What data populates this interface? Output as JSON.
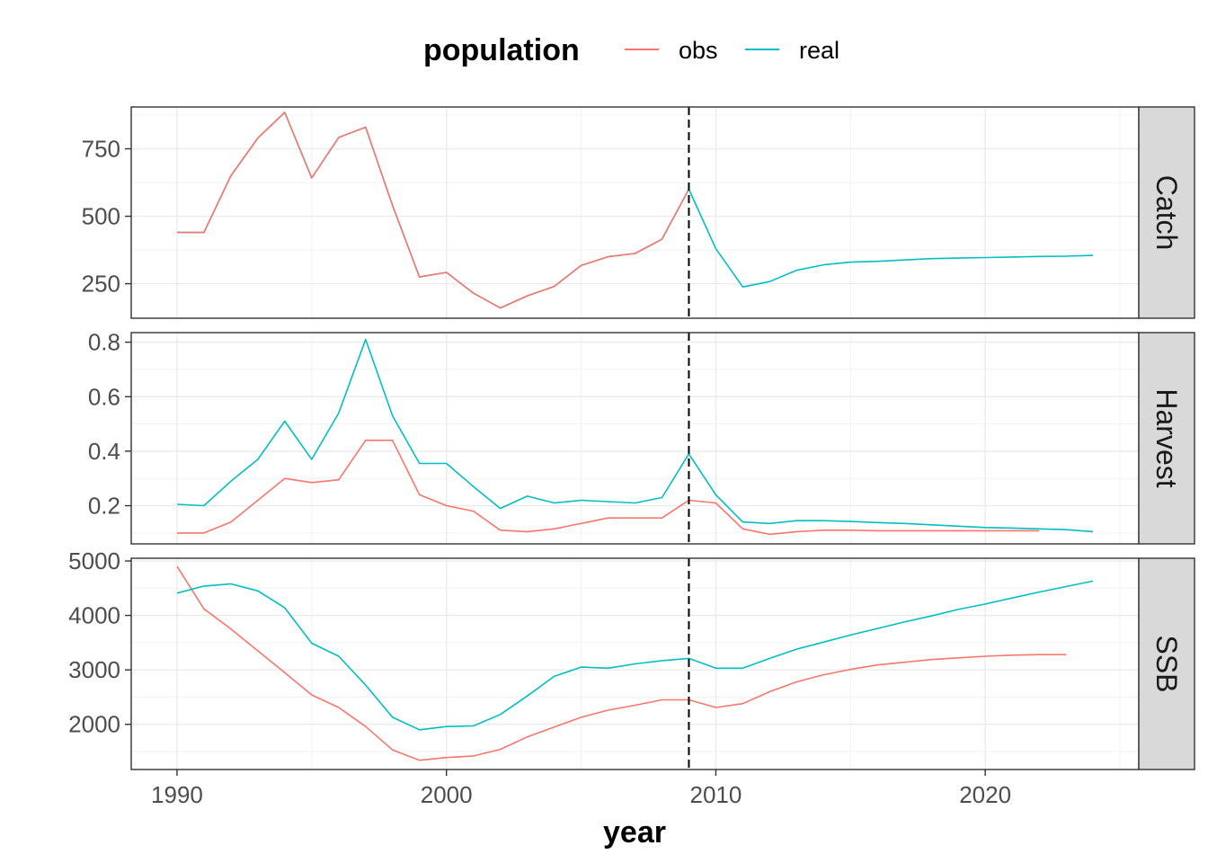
{
  "chart_data": {
    "type": "line",
    "xlabel": "year",
    "xlim": [
      1988.3,
      2025.7
    ],
    "x_ticks": [
      1990,
      2000,
      2010,
      2020
    ],
    "x_tick_labels": [
      "1990",
      "2000",
      "2010",
      "2020"
    ],
    "x_minor_ticks": [
      1995,
      2005,
      2015,
      2025
    ],
    "vline_x": 2009,
    "grid": true,
    "legend": {
      "title": "population",
      "position": "top",
      "entries": [
        {
          "name": "obs",
          "color": "#F8766D"
        },
        {
          "name": "real",
          "color": "#00BFC4"
        }
      ]
    },
    "panels": [
      {
        "strip": "Catch",
        "ylim": [
          122,
          905
        ],
        "y_ticks": [
          250,
          500,
          750
        ],
        "y_tick_labels": [
          "250",
          "500",
          "750"
        ],
        "y_minor_ticks": [
          375,
          625,
          875
        ],
        "series": [
          {
            "name": "real",
            "color": "#00BFC4",
            "x": [
              1990,
              1991,
              1992,
              1993,
              1994,
              1995,
              1996,
              1997,
              1998,
              1999,
              2000,
              2001,
              2002,
              2003,
              2004,
              2005,
              2006,
              2007,
              2008,
              2009,
              2010,
              2011,
              2012,
              2013,
              2014,
              2015,
              2016,
              2017,
              2018,
              2019,
              2020,
              2021,
              2022,
              2023,
              2024
            ],
            "y": [
              440,
              440,
              650,
              790,
              885,
              642,
              792,
              830,
              540,
              275,
              292,
              215,
              160,
              205,
              240,
              318,
              350,
              362,
              415,
              600,
              380,
              238,
              258,
              300,
              320,
              330,
              333,
              338,
              343,
              345,
              347,
              349,
              351,
              352,
              355
            ]
          },
          {
            "name": "obs",
            "color": "#F8766D",
            "x": [
              1990,
              1991,
              1992,
              1993,
              1994,
              1995,
              1996,
              1997,
              1998,
              1999,
              2000,
              2001,
              2002,
              2003,
              2004,
              2005,
              2006,
              2007,
              2008,
              2009
            ],
            "y": [
              440,
              440,
              650,
              790,
              885,
              642,
              792,
              830,
              540,
              275,
              292,
              215,
              160,
              205,
              240,
              318,
              350,
              362,
              415,
              600
            ]
          }
        ]
      },
      {
        "strip": "Harvest",
        "ylim": [
          0.06,
          0.835
        ],
        "y_ticks": [
          0.2,
          0.4,
          0.6,
          0.8
        ],
        "y_tick_labels": [
          "0.2",
          "0.4",
          "0.6",
          "0.8"
        ],
        "y_minor_ticks": [
          0.1,
          0.3,
          0.5,
          0.7
        ],
        "series": [
          {
            "name": "obs",
            "color": "#F8766D",
            "x": [
              1990,
              1991,
              1992,
              1993,
              1994,
              1995,
              1996,
              1997,
              1998,
              1999,
              2000,
              2001,
              2002,
              2003,
              2004,
              2005,
              2006,
              2007,
              2008,
              2009,
              2010,
              2011,
              2012,
              2013,
              2014,
              2015,
              2016,
              2017,
              2018,
              2019,
              2020,
              2021,
              2022
            ],
            "y": [
              0.1,
              0.1,
              0.14,
              0.22,
              0.3,
              0.285,
              0.295,
              0.44,
              0.44,
              0.24,
              0.2,
              0.18,
              0.11,
              0.105,
              0.115,
              0.135,
              0.155,
              0.155,
              0.155,
              0.22,
              0.21,
              0.115,
              0.095,
              0.105,
              0.11,
              0.11,
              0.108,
              0.108,
              0.108,
              0.108,
              0.108,
              0.108,
              0.108
            ]
          },
          {
            "name": "real",
            "color": "#00BFC4",
            "x": [
              1990,
              1991,
              1992,
              1993,
              1994,
              1995,
              1996,
              1997,
              1998,
              1999,
              2000,
              2001,
              2002,
              2003,
              2004,
              2005,
              2006,
              2007,
              2008,
              2009,
              2010,
              2011,
              2012,
              2013,
              2014,
              2015,
              2016,
              2017,
              2018,
              2019,
              2020,
              2021,
              2022,
              2023,
              2024
            ],
            "y": [
              0.205,
              0.2,
              0.29,
              0.37,
              0.51,
              0.37,
              0.54,
              0.81,
              0.53,
              0.355,
              0.355,
              0.27,
              0.19,
              0.235,
              0.21,
              0.22,
              0.215,
              0.21,
              0.23,
              0.39,
              0.24,
              0.14,
              0.135,
              0.145,
              0.145,
              0.142,
              0.138,
              0.135,
              0.13,
              0.125,
              0.12,
              0.118,
              0.115,
              0.112,
              0.105
            ]
          }
        ]
      },
      {
        "strip": "SSB",
        "ylim": [
          1170,
          5050
        ],
        "y_ticks": [
          2000,
          3000,
          4000,
          5000
        ],
        "y_tick_labels": [
          "2000",
          "3000",
          "4000",
          "5000"
        ],
        "y_minor_ticks": [
          1500,
          2500,
          3500,
          4500
        ],
        "series": [
          {
            "name": "obs",
            "color": "#F8766D",
            "x": [
              1990,
              1991,
              1992,
              1993,
              1994,
              1995,
              1996,
              1997,
              1998,
              1999,
              2000,
              2001,
              2002,
              2003,
              2004,
              2005,
              2006,
              2007,
              2008,
              2009,
              2010,
              2011,
              2012,
              2013,
              2014,
              2015,
              2016,
              2017,
              2018,
              2019,
              2020,
              2021,
              2022,
              2023
            ],
            "y": [
              4900,
              4120,
              3750,
              3350,
              2950,
              2540,
              2310,
              1960,
              1530,
              1340,
              1390,
              1420,
              1540,
              1770,
              1950,
              2130,
              2260,
              2350,
              2450,
              2450,
              2310,
              2380,
              2600,
              2780,
              2910,
              3010,
              3090,
              3140,
              3190,
              3220,
              3250,
              3270,
              3280,
              3280
            ]
          },
          {
            "name": "real",
            "color": "#00BFC4",
            "x": [
              1990,
              1991,
              1992,
              1993,
              1994,
              1995,
              1996,
              1997,
              1998,
              1999,
              2000,
              2001,
              2002,
              2003,
              2004,
              2005,
              2006,
              2007,
              2008,
              2009,
              2010,
              2011,
              2012,
              2013,
              2014,
              2015,
              2016,
              2017,
              2018,
              2019,
              2020,
              2021,
              2022,
              2023,
              2024
            ],
            "y": [
              4410,
              4540,
              4580,
              4450,
              4140,
              3490,
              3250,
              2720,
              2130,
              1900,
              1960,
              1970,
              2180,
              2520,
              2880,
              3050,
              3030,
              3110,
              3170,
              3210,
              3030,
              3030,
              3210,
              3380,
              3510,
              3640,
              3760,
              3880,
              3990,
              4110,
              4210,
              4320,
              4430,
              4530,
              4630
            ]
          }
        ]
      }
    ]
  }
}
